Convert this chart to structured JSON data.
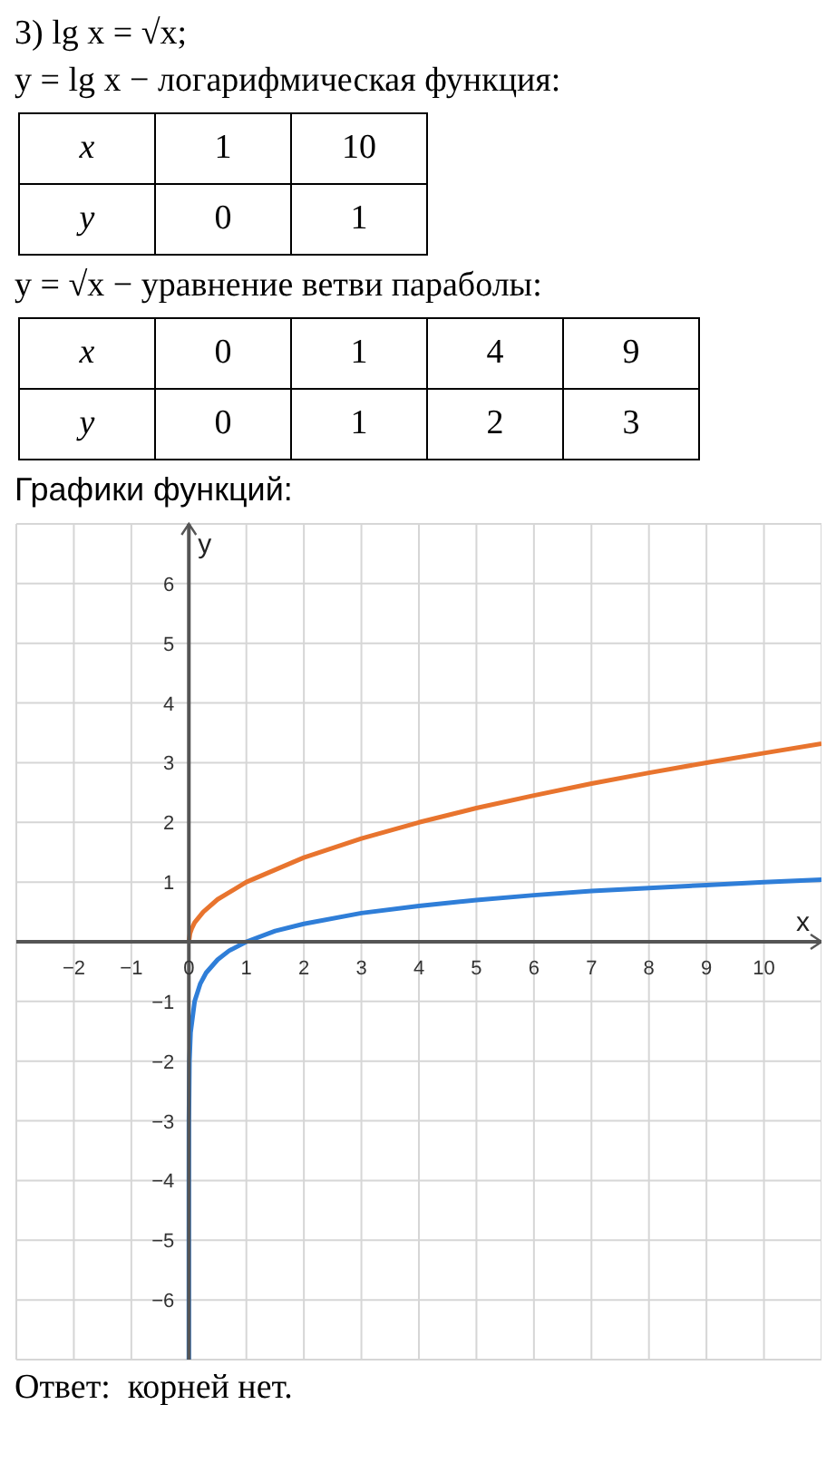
{
  "chart_data": {
    "type": "line",
    "title": "3) lg x = √x;",
    "annotations": [
      "y = lg x − логарифмическая функция:",
      "x",
      "1",
      "10",
      "y",
      "0",
      "1",
      "y = √x − уравнение ветви параболы:",
      "x",
      "0",
      "1",
      "4",
      "9",
      "y",
      "0",
      "1",
      "2",
      "3",
      "Графики функций:",
      "Ответ:  корней нет."
    ],
    "xlabel": "x",
    "ylabel": "y",
    "series": [
      {
        "color": "#e8742e",
        "x": [
          0,
          0.02,
          0.05,
          0.1,
          0.25,
          0.5,
          1,
          2,
          3,
          4,
          5,
          6,
          7,
          8,
          9,
          10,
          11
        ],
        "values": [
          0,
          0.14,
          0.22,
          0.32,
          0.5,
          0.71,
          1,
          1.41,
          1.73,
          2,
          2.24,
          2.45,
          2.65,
          2.83,
          3,
          3.16,
          3.32
        ]
      },
      {
        "color": "#2f7ed8",
        "x": [
          1e-07,
          1e-06,
          1e-05,
          0.0001,
          0.001,
          0.01,
          0.03,
          0.1,
          0.2,
          0.3,
          0.5,
          0.7,
          1,
          1.5,
          2,
          3,
          4,
          5,
          6,
          7,
          8,
          9,
          10,
          11
        ],
        "values": [
          -7,
          -6,
          -5,
          -4,
          -3,
          -2,
          -1.52,
          -1,
          -0.7,
          -0.52,
          -0.3,
          -0.15,
          0,
          0.18,
          0.3,
          0.48,
          0.6,
          0.7,
          0.78,
          0.85,
          0.9,
          0.95,
          1,
          1.04
        ]
      }
    ],
    "xlim": [
      -3,
      11
    ],
    "xticks": [
      -2,
      -1,
      0,
      1,
      2,
      3,
      4,
      5,
      6,
      7,
      8,
      9,
      10
    ],
    "ylim": [
      -7,
      7
    ],
    "yticks": [
      -6,
      -5,
      -4,
      -3,
      -2,
      -1,
      {
        "value": 0,
        "label": null
      },
      1,
      2,
      3,
      4,
      5,
      6
    ],
    "grid": true,
    "legend": false,
    "marker": "none",
    "line_style": "solid"
  }
}
